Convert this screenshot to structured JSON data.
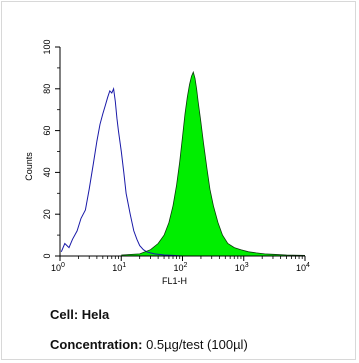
{
  "chart_data": {
    "type": "area",
    "xlabel": "FL1-H",
    "ylabel": "Counts",
    "x_scale": "log",
    "xlim": [
      1,
      10000
    ],
    "ylim": [
      0,
      100
    ],
    "x_ticks": [
      {
        "base": "10",
        "exp": "0"
      },
      {
        "base": "10",
        "exp": "1"
      },
      {
        "base": "10",
        "exp": "2"
      },
      {
        "base": "10",
        "exp": "3"
      },
      {
        "base": "10",
        "exp": "4"
      }
    ],
    "y_ticks": [
      "0",
      "20",
      "40",
      "60",
      "80",
      "100"
    ],
    "grid": false,
    "series": [
      {
        "style": "outline",
        "color": "#1a1aa8",
        "x": [
          1.05,
          1.2,
          1.4,
          1.6,
          1.9,
          2.2,
          2.6,
          3.0,
          3.5,
          4.0,
          4.5,
          5.0,
          5.5,
          6.0,
          6.5,
          7.0,
          7.5,
          8.0,
          8.5,
          9.0,
          10,
          11,
          12,
          14,
          16,
          18,
          20,
          23,
          26,
          30,
          35,
          40,
          50,
          70,
          100
        ],
        "y": [
          2,
          6,
          4,
          8,
          12,
          18,
          22,
          32,
          44,
          55,
          63,
          68,
          72,
          76,
          79,
          78,
          80,
          74,
          66,
          60,
          50,
          40,
          30,
          20,
          12,
          8,
          5,
          3,
          2,
          1.5,
          1,
          0.8,
          0.5,
          0.3,
          0
        ]
      },
      {
        "style": "filled",
        "color": "#00ee00",
        "x": [
          10,
          20,
          30,
          40,
          50,
          60,
          70,
          80,
          90,
          100,
          110,
          120,
          130,
          140,
          150,
          160,
          170,
          180,
          200,
          220,
          250,
          280,
          320,
          380,
          450,
          550,
          700,
          900,
          1200,
          1600,
          2200,
          3000,
          5000,
          10000
        ],
        "y": [
          0.5,
          1,
          3,
          6,
          10,
          16,
          24,
          34,
          45,
          57,
          68,
          76,
          82,
          86,
          88,
          85,
          80,
          74,
          64,
          54,
          42,
          32,
          24,
          16,
          10,
          6,
          4,
          3,
          2,
          1.5,
          1,
          0.8,
          0.5,
          0.3
        ]
      }
    ]
  },
  "caption": {
    "cell_label": "Cell:",
    "cell_value": "Hela",
    "conc_label": "Concentration:",
    "conc_value": "0.5µg/test (100µl)"
  }
}
